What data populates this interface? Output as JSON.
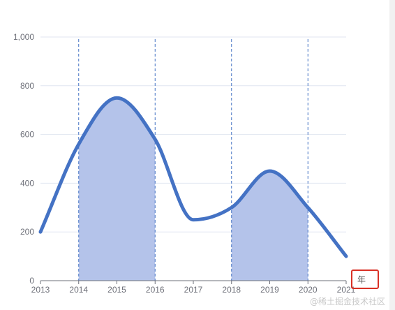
{
  "chart_data": {
    "type": "line",
    "x": [
      2013,
      2014,
      2015,
      2016,
      2017,
      2018,
      2019,
      2020,
      2021
    ],
    "x_tick_labels": [
      "2013",
      "2014",
      "2015",
      "2016",
      "2017",
      "2018",
      "2019",
      "2020",
      "2021"
    ],
    "y_tick_labels": [
      "0",
      "200",
      "400",
      "600",
      "800",
      "1,000"
    ],
    "y_ticks": [
      0,
      200,
      400,
      600,
      800,
      1000
    ],
    "xlim": [
      2013,
      2021
    ],
    "ylim": [
      0,
      1000
    ],
    "xlabel": "年",
    "ylabel": "",
    "title": "",
    "smooth": true,
    "series": [
      {
        "values": [
          200,
          560,
          750,
          580,
          250,
          300,
          450,
          300,
          100
        ],
        "color": "#4472c4"
      }
    ],
    "marked_areas": [
      {
        "from": 2014,
        "to": 2016,
        "color": "#b4c3ea"
      },
      {
        "from": 2018,
        "to": 2020,
        "color": "#b4c3ea"
      }
    ],
    "mark_lines": [
      2014,
      2016,
      2018,
      2020
    ],
    "grid": true,
    "axis_name_highlight": "#d93025"
  },
  "watermark": "@稀土掘金技术社区"
}
